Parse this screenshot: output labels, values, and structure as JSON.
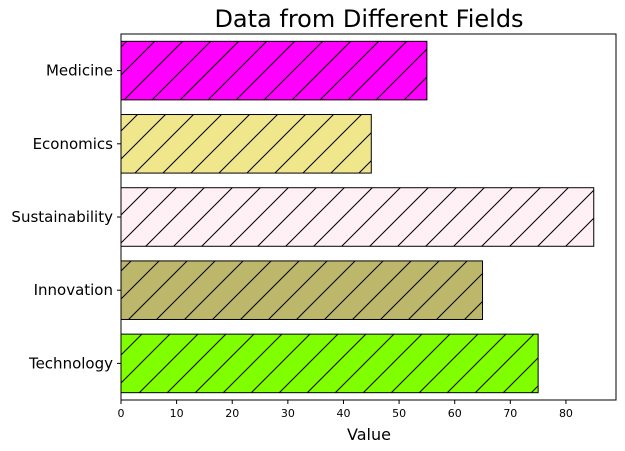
{
  "chart_data": {
    "type": "bar",
    "orientation": "horizontal",
    "title": "Data from Different Fields",
    "xlabel": "Value",
    "ylabel": "",
    "categories": [
      "Technology",
      "Innovation",
      "Sustainability",
      "Economics",
      "Medicine"
    ],
    "values": [
      75,
      65,
      85,
      45,
      55
    ],
    "colors": [
      "#7fff00",
      "#bdb76b",
      "#fff0f5",
      "#f0e68c",
      "#ff00ff"
    ],
    "hatch": "diagonal",
    "xlim": [
      0,
      89
    ],
    "xticks": [
      0,
      10,
      20,
      30,
      40,
      50,
      60,
      70,
      80
    ],
    "grid": false,
    "legend": "none"
  }
}
